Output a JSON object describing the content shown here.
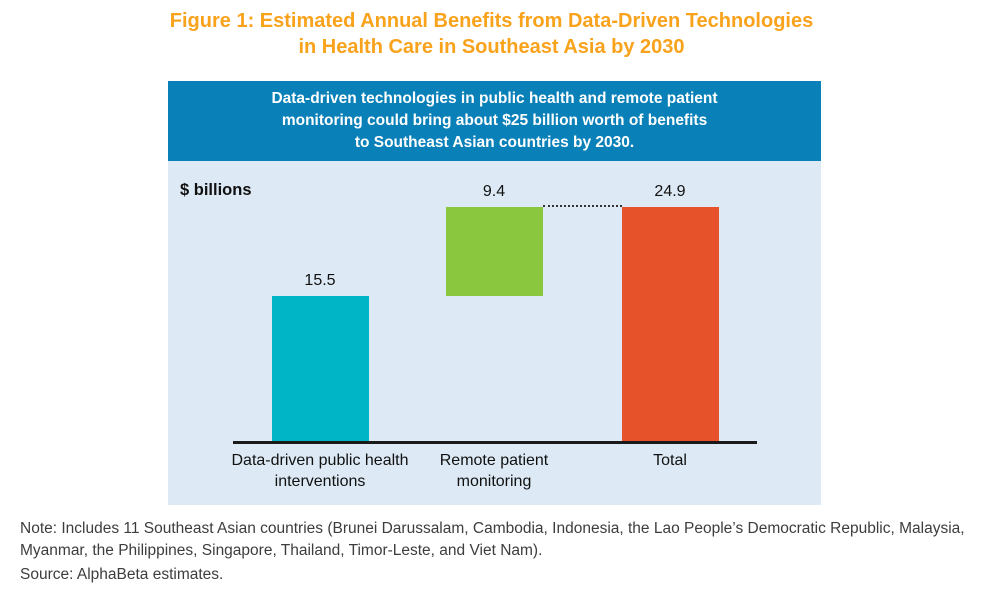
{
  "figure": {
    "title_line1": "Figure 1: Estimated Annual Benefits from Data-Driven Technologies",
    "title_line2": "in Health Care in Southeast Asia by 2030",
    "title_color": "#F9A21C"
  },
  "panel": {
    "header_lines": [
      "Data-driven technologies in public health and remote patient",
      "monitoring could bring about $25 billion worth of benefits",
      "to Southeast Asian countries by 2030."
    ],
    "header_bg_color": "#0981B8",
    "header_text_color": "#FFFFFF",
    "plot_bg_color": "#DDEAF5"
  },
  "chart_data": {
    "type": "bar",
    "subtype": "waterfall",
    "title": "Figure 1: Estimated Annual Benefits from Data-Driven Technologies in Health Care in Southeast Asia by 2030",
    "subtitle": "Data-driven technologies in public health and remote patient monitoring could bring about $25 billion worth of benefits to Southeast Asian countries by 2030.",
    "ylabel": "$ billions",
    "xlabel": "",
    "categories": [
      "Data-driven public health interventions",
      "Remote patient monitoring",
      "Total"
    ],
    "values": [
      15.5,
      9.4,
      24.9
    ],
    "bar_bases": [
      0,
      15.5,
      0
    ],
    "bar_colors": [
      "#00B6C6",
      "#8BC63F",
      "#E6522A"
    ],
    "connector": {
      "style": "dotted",
      "from_bar": 1,
      "to_bar": 2,
      "at_value": 24.9
    },
    "ylim": [
      0,
      29.75
    ],
    "grid": false,
    "legend": false
  },
  "notes": {
    "note": "Note: Includes 11 Southeast Asian countries (Brunei Darussalam, Cambodia, Indonesia, the Lao People’s Democratic Republic, Malaysia, Myanmar, the Philippines, Singapore, Thailand, Timor-Leste, and Viet Nam).",
    "source": "Source: AlphaBeta estimates."
  }
}
